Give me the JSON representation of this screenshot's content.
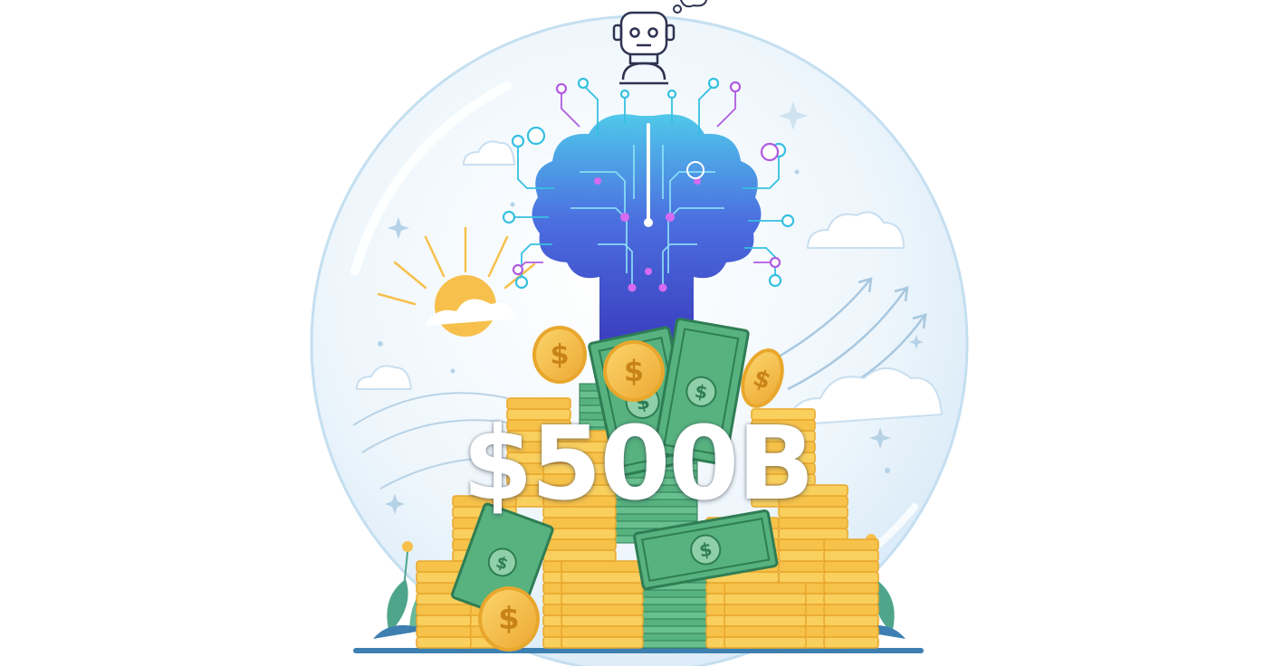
{
  "headline": "$500B",
  "colors": {
    "globe_fill": "#eaf4fb",
    "globe_edge": "#bcd9ee",
    "brain_top": "#4fc9ea",
    "brain_mid": "#4c6fe0",
    "brain_bottom": "#3a3bbd",
    "circuit_cyan": "#35c0e0",
    "circuit_purple": "#b05be0",
    "coin_face": "#f6c24a",
    "coin_edge": "#e8a72c",
    "coin_symbol": "#c88317",
    "bill_green": "#57b27f",
    "bill_dark": "#2f7d54",
    "sun": "#f7c04c",
    "leaf": "#4fa58a",
    "ground": "#3d7fb0",
    "robot_line": "#2e3350"
  },
  "icons": [
    "robot-head-icon",
    "thought-bubble-icon",
    "brain-circuit-icon",
    "sun-icon",
    "cloud-icon",
    "sparkle-icon",
    "growth-arrow-icon",
    "coin-stack-icon",
    "dollar-bill-icon",
    "dollar-coin-icon",
    "flower-icon",
    "leaf-icon"
  ]
}
